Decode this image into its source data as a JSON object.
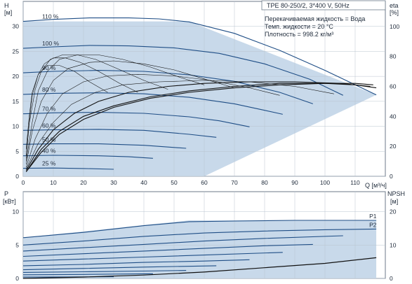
{
  "chart_data": [
    {
      "type": "line",
      "panel": "top",
      "title": "TPE 80-250/2, 3*400 V, 50Hz",
      "annotations": [
        "Перекачиваемая жидкость = Вода",
        "Темп. жидкости = 20 °C",
        "Плотность = 998.2 кг/м³"
      ],
      "xlabel": "Q [м³/ч]",
      "ylabel_left": {
        "name": "H",
        "unit": "[м]"
      },
      "ylabel_right": {
        "name": "eta",
        "unit": "[%]"
      },
      "xlim": [
        0,
        120
      ],
      "ylim_left": [
        0,
        35
      ],
      "ylim_right": [
        0,
        116.7
      ],
      "x_ticks": [
        0,
        10,
        20,
        30,
        40,
        50,
        60,
        70,
        80,
        90,
        100,
        110
      ],
      "y_ticks_left": [
        0,
        5,
        10,
        15,
        20,
        25,
        30
      ],
      "y_ticks_right": [
        0,
        20,
        40,
        60,
        80,
        100
      ],
      "grid": true,
      "colors": {
        "envelope_fill": "#c8d9ea",
        "curve": "#1f4e86",
        "eff": "#111111",
        "grid": "#b9c4cf"
      },
      "envelope": {
        "x": [
          0,
          0,
          55,
          117,
          60,
          32,
          0
        ],
        "y": [
          0,
          31,
          31,
          16.3,
          0,
          0,
          0
        ]
      },
      "series": [
        {
          "name": "110 %",
          "x": [
            0,
            10,
            22,
            35,
            45,
            55,
            70,
            85,
            100,
            117
          ],
          "y": [
            31,
            31.4,
            31.7,
            31.7,
            31.5,
            30.9,
            28.6,
            25.2,
            21.2,
            16.3
          ]
        },
        {
          "name": "100 %",
          "x": [
            0,
            10,
            22,
            35,
            50,
            65,
            80,
            95,
            106
          ],
          "y": [
            25.6,
            25.9,
            26.2,
            26.1,
            25.7,
            24.6,
            22.5,
            19.4,
            16.2
          ]
        },
        {
          "name": "90 %",
          "x": [
            0,
            10,
            25,
            40,
            55,
            70,
            85,
            96
          ],
          "y": [
            20.7,
            21.0,
            21.2,
            21.0,
            20.3,
            19.0,
            16.8,
            14.5
          ]
        },
        {
          "name": "80 %",
          "x": [
            0,
            10,
            25,
            40,
            55,
            70,
            80,
            86
          ],
          "y": [
            16.4,
            16.6,
            16.7,
            16.5,
            15.8,
            14.5,
            13.2,
            12.4
          ]
        },
        {
          "name": "70 %",
          "x": [
            0,
            10,
            25,
            40,
            55,
            65,
            75
          ],
          "y": [
            12.5,
            12.7,
            12.8,
            12.6,
            11.9,
            11.1,
            9.9
          ]
        },
        {
          "name": "60 %",
          "x": [
            0,
            10,
            25,
            40,
            55,
            64
          ],
          "y": [
            9.2,
            9.3,
            9.4,
            9.2,
            8.4,
            7.8
          ]
        },
        {
          "name": "50 %",
          "x": [
            0,
            10,
            25,
            40,
            54
          ],
          "y": [
            6.4,
            6.5,
            6.5,
            6.2,
            5.6
          ]
        },
        {
          "name": "40 %",
          "x": [
            0,
            10,
            25,
            35,
            43
          ],
          "y": [
            4.1,
            4.2,
            4.1,
            3.9,
            3.6
          ]
        },
        {
          "name": "25 %",
          "x": [
            0,
            10,
            20,
            30
          ],
          "y": [
            1.6,
            1.65,
            1.55,
            1.4
          ]
        }
      ],
      "efficiency_curves": [
        {
          "x": [
            1,
            6,
            12,
            20,
            30,
            42,
            55,
            70,
            85,
            100,
            110,
            117
          ],
          "y": [
            3,
            18,
            30,
            40,
            47,
            53,
            57,
            60,
            62,
            62,
            61,
            59
          ]
        },
        {
          "x": [
            1,
            6,
            12,
            20,
            30,
            42,
            55,
            70,
            85,
            100,
            110,
            116
          ],
          "y": [
            3,
            16,
            28,
            38,
            46,
            52,
            56,
            59,
            61,
            62,
            62,
            61
          ]
        },
        {
          "x": [
            1,
            5,
            10,
            17,
            25,
            35,
            48,
            60,
            75,
            90,
            105,
            115
          ],
          "y": [
            4,
            18,
            31,
            42,
            50,
            56,
            60,
            62,
            63,
            63,
            62,
            60
          ]
        },
        {
          "x": [
            1,
            5,
            10,
            16,
            24,
            33,
            45,
            60,
            75,
            90,
            103
          ],
          "y": [
            5,
            22,
            36,
            48,
            56,
            61,
            63,
            64,
            63,
            60,
            55
          ]
        },
        {
          "x": [
            1,
            4,
            8,
            13,
            20,
            28,
            38,
            50,
            62,
            75,
            85
          ],
          "y": [
            6,
            25,
            42,
            55,
            63,
            67,
            68,
            67,
            64,
            59,
            54
          ]
        },
        {
          "x": [
            1,
            3,
            6,
            10,
            15,
            22,
            30,
            40,
            50,
            60,
            70
          ],
          "y": [
            8,
            30,
            50,
            64,
            72,
            76,
            77,
            75,
            71,
            65,
            59
          ]
        },
        {
          "x": [
            1,
            3,
            5,
            8,
            12,
            18,
            25,
            33,
            42,
            52,
            60
          ],
          "y": [
            10,
            36,
            57,
            70,
            78,
            81,
            81,
            78,
            73,
            66,
            61
          ]
        },
        {
          "x": [
            1,
            2,
            4,
            6,
            9,
            13,
            18,
            24,
            31,
            40,
            48
          ],
          "y": [
            12,
            35,
            58,
            70,
            78,
            81,
            81,
            78,
            72,
            64,
            58
          ]
        },
        {
          "x": [
            1,
            2,
            3,
            5,
            7,
            10,
            14,
            19,
            25,
            32,
            38
          ],
          "y": [
            14,
            36,
            54,
            68,
            75,
            79,
            79,
            76,
            70,
            62,
            56
          ]
        },
        {
          "x": [
            1,
            2,
            3,
            5,
            8,
            12,
            17,
            22,
            28
          ],
          "y": [
            18,
            40,
            56,
            68,
            74,
            74,
            70,
            63,
            56
          ]
        }
      ]
    },
    {
      "type": "line",
      "panel": "bottom",
      "ylabel_left": {
        "name": "P",
        "unit": "[кВт]"
      },
      "ylabel_right": {
        "name": "NPSH",
        "unit": "[м]"
      },
      "xlim": [
        0,
        120
      ],
      "ylim_left": [
        0,
        13
      ],
      "ylim_right": [
        0,
        26
      ],
      "y_ticks_left": [
        0,
        5,
        10
      ],
      "y_ticks_right": [
        0,
        10,
        20
      ],
      "grid": true,
      "envelope": {
        "x": [
          0,
          0,
          55,
          117,
          117,
          0
        ],
        "y": [
          0,
          6.1,
          8.7,
          8.7,
          0,
          0
        ]
      },
      "series": [
        {
          "name": "P1",
          "x": [
            0,
            20,
            40,
            55,
            70,
            90,
            117
          ],
          "y": [
            6.1,
            6.9,
            7.9,
            8.5,
            8.6,
            8.7,
            8.7
          ]
        },
        {
          "name": "P2",
          "x": [
            0,
            20,
            40,
            60,
            80,
            100,
            117
          ],
          "y": [
            5.0,
            5.6,
            6.3,
            6.8,
            7.1,
            7.3,
            7.4
          ]
        },
        {
          "x": [
            0,
            20,
            40,
            60,
            80,
            106
          ],
          "y": [
            4.1,
            4.6,
            5.1,
            5.6,
            6.0,
            6.4
          ]
        },
        {
          "x": [
            0,
            20,
            40,
            60,
            80,
            96
          ],
          "y": [
            3.3,
            3.7,
            4.1,
            4.5,
            4.9,
            5.1
          ]
        },
        {
          "x": [
            0,
            20,
            40,
            60,
            86
          ],
          "y": [
            2.6,
            2.9,
            3.2,
            3.5,
            3.9
          ]
        },
        {
          "x": [
            0,
            20,
            40,
            60,
            75
          ],
          "y": [
            1.9,
            2.1,
            2.4,
            2.6,
            2.8
          ]
        },
        {
          "x": [
            0,
            20,
            40,
            64
          ],
          "y": [
            1.3,
            1.5,
            1.7,
            1.9
          ]
        },
        {
          "x": [
            0,
            20,
            40,
            54
          ],
          "y": [
            0.9,
            1.0,
            1.1,
            1.2
          ]
        },
        {
          "x": [
            0,
            20,
            43
          ],
          "y": [
            0.55,
            0.6,
            0.7
          ]
        },
        {
          "x": [
            0,
            15,
            30
          ],
          "y": [
            0.2,
            0.22,
            0.25
          ]
        }
      ],
      "npsh_curve": {
        "x": [
          0,
          20,
          40,
          60,
          80,
          100,
          117
        ],
        "y": [
          0,
          0.4,
          1.0,
          1.9,
          3.2,
          4.5,
          6.2
        ]
      }
    }
  ]
}
